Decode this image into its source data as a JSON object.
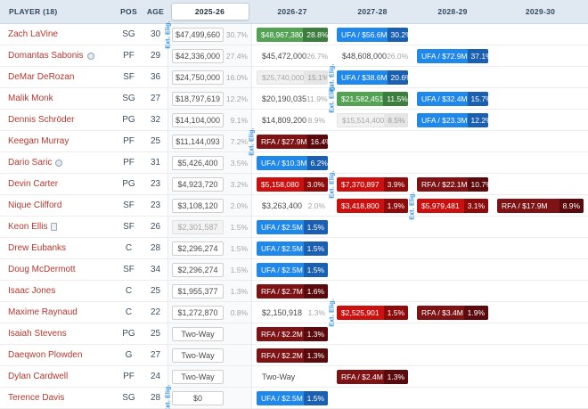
{
  "header": {
    "columns": [
      {
        "label": "PLAYER (18)",
        "active": false
      },
      {
        "label": "POS",
        "active": false
      },
      {
        "label": "AGE",
        "active": false
      },
      {
        "label": "2025-26",
        "active": true
      },
      {
        "label": "2026-27",
        "active": false
      },
      {
        "label": "2027-28",
        "active": false
      },
      {
        "label": "2028-29",
        "active": false
      },
      {
        "label": "2029-30",
        "active": false
      }
    ]
  },
  "ext_label": "Ext. Elig.",
  "colors": {
    "header_bg": "#e0e9f2",
    "player_link": "#b5372e",
    "green": "#54a254",
    "green_badge": "#3c7e3e",
    "blue": "#1f88e8",
    "blue_badge": "#1a5fb0",
    "red": "#cb1010",
    "red_badge": "#8e0b0b",
    "maroon": "#7d1315",
    "maroon_badge": "#5a0a0c",
    "ext": "#2e8fe0"
  },
  "rows": [
    {
      "player": "Zach LaVine",
      "pos": "SG",
      "age": "30",
      "icon": null,
      "seasons": [
        {
          "col": 0,
          "type": "boxed",
          "text": "$47,499,660",
          "pct": "30.7%",
          "ext": true
        },
        {
          "col": 1,
          "type": "green",
          "text": "$48,967,380",
          "pct": "28.8%"
        },
        {
          "col": 2,
          "type": "blue",
          "text": "UFA / $56.6M",
          "pct": "30.2%"
        }
      ]
    },
    {
      "player": "Domantas Sabonis",
      "pos": "PF",
      "age": "29",
      "icon": "circle",
      "seasons": [
        {
          "col": 0,
          "type": "boxed",
          "text": "$42,336,000",
          "pct": "27.4%"
        },
        {
          "col": 1,
          "type": "plain",
          "text": "$45,472,000",
          "pct": "26.7%"
        },
        {
          "col": 2,
          "type": "plain",
          "text": "$48,608,000",
          "pct": "26.0%"
        },
        {
          "col": 3,
          "type": "blue",
          "text": "UFA / $72.9M",
          "pct": "37.1%"
        }
      ]
    },
    {
      "player": "DeMar DeRozan",
      "pos": "SF",
      "age": "36",
      "icon": null,
      "seasons": [
        {
          "col": 0,
          "type": "boxed",
          "text": "$24,750,000",
          "pct": "16.0%"
        },
        {
          "col": 1,
          "type": "muted",
          "text": "$25,740,000",
          "pct": "15.1%"
        },
        {
          "col": 2,
          "type": "blue",
          "text": "UFA / $38.6M",
          "pct": "20.6%",
          "ext": true
        }
      ]
    },
    {
      "player": "Malik Monk",
      "pos": "SG",
      "age": "27",
      "icon": null,
      "seasons": [
        {
          "col": 0,
          "type": "boxed",
          "text": "$18,797,619",
          "pct": "12.2%"
        },
        {
          "col": 1,
          "type": "plain",
          "text": "$20,190,035",
          "pct": "11.9%"
        },
        {
          "col": 2,
          "type": "green",
          "text": "$21,582,451",
          "pct": "11.5%",
          "ext": true
        },
        {
          "col": 3,
          "type": "blue",
          "text": "UFA / $32.4M",
          "pct": "15.7%"
        }
      ]
    },
    {
      "player": "Dennis Schröder",
      "pos": "PG",
      "age": "32",
      "icon": null,
      "seasons": [
        {
          "col": 0,
          "type": "boxed",
          "text": "$14,104,000",
          "pct": "9.1%"
        },
        {
          "col": 1,
          "type": "plain",
          "text": "$14,809,200",
          "pct": "8.9%"
        },
        {
          "col": 2,
          "type": "muted",
          "text": "$15,514,400",
          "pct": "8.5%"
        },
        {
          "col": 3,
          "type": "blue",
          "text": "UFA / $23.3M",
          "pct": "12.2%"
        }
      ]
    },
    {
      "player": "Keegan Murray",
      "pos": "PF",
      "age": "25",
      "icon": null,
      "seasons": [
        {
          "col": 0,
          "type": "boxed",
          "text": "$11,144,093",
          "pct": "7.2%"
        },
        {
          "col": 1,
          "type": "maroon",
          "text": "RFA / $27.9M",
          "pct": "16.4%",
          "ext": true
        }
      ]
    },
    {
      "player": "Dario Saric",
      "pos": "PF",
      "age": "31",
      "icon": "circle",
      "seasons": [
        {
          "col": 0,
          "type": "boxed",
          "text": "$5,426,400",
          "pct": "3.5%"
        },
        {
          "col": 1,
          "type": "blue",
          "text": "UFA / $10.3M",
          "pct": "6.2%"
        }
      ]
    },
    {
      "player": "Devin Carter",
      "pos": "PG",
      "age": "23",
      "icon": null,
      "seasons": [
        {
          "col": 0,
          "type": "boxed",
          "text": "$4,923,720",
          "pct": "3.2%"
        },
        {
          "col": 1,
          "type": "red",
          "text": "$5,158,080",
          "pct": "3.0%"
        },
        {
          "col": 2,
          "type": "red",
          "text": "$7,370,897",
          "pct": "3.9%",
          "ext": true
        },
        {
          "col": 3,
          "type": "maroon",
          "text": "RFA / $22.1M",
          "pct": "10.7%"
        }
      ]
    },
    {
      "player": "Nique Clifford",
      "pos": "SF",
      "age": "23",
      "icon": null,
      "seasons": [
        {
          "col": 0,
          "type": "boxed",
          "text": "$3,108,120",
          "pct": "2.0%"
        },
        {
          "col": 1,
          "type": "plain",
          "text": "$3,263,400",
          "pct": "2.0%"
        },
        {
          "col": 2,
          "type": "red",
          "text": "$3,418,800",
          "pct": "1.9%"
        },
        {
          "col": 3,
          "type": "red",
          "text": "$5,979,481",
          "pct": "3.1%",
          "ext": true
        },
        {
          "col": 4,
          "type": "maroon",
          "text": "RFA / $17.9M",
          "pct": "8.9%"
        }
      ]
    },
    {
      "player": "Keon Ellis",
      "pos": "SF",
      "age": "26",
      "icon": "card",
      "seasons": [
        {
          "col": 0,
          "type": "boxed_muted",
          "text": "$2,301,587",
          "pct": "1.5%"
        },
        {
          "col": 1,
          "type": "blue",
          "text": "UFA / $2.5M",
          "pct": "1.5%"
        }
      ]
    },
    {
      "player": "Drew Eubanks",
      "pos": "C",
      "age": "28",
      "icon": null,
      "seasons": [
        {
          "col": 0,
          "type": "boxed",
          "text": "$2,296,274",
          "pct": "1.5%"
        },
        {
          "col": 1,
          "type": "blue",
          "text": "UFA / $2.5M",
          "pct": "1.5%"
        }
      ]
    },
    {
      "player": "Doug McDermott",
      "pos": "SF",
      "age": "34",
      "icon": null,
      "seasons": [
        {
          "col": 0,
          "type": "boxed",
          "text": "$2,296,274",
          "pct": "1.5%"
        },
        {
          "col": 1,
          "type": "blue",
          "text": "UFA / $2.5M",
          "pct": "1.5%"
        }
      ]
    },
    {
      "player": "Isaac Jones",
      "pos": "C",
      "age": "25",
      "icon": null,
      "seasons": [
        {
          "col": 0,
          "type": "boxed",
          "text": "$1,955,377",
          "pct": "1.3%"
        },
        {
          "col": 1,
          "type": "maroon",
          "text": "RFA / $2.7M",
          "pct": "1.6%"
        }
      ]
    },
    {
      "player": "Maxime Raynaud",
      "pos": "C",
      "age": "22",
      "icon": null,
      "seasons": [
        {
          "col": 0,
          "type": "boxed",
          "text": "$1,272,870",
          "pct": "0.8%"
        },
        {
          "col": 1,
          "type": "plain",
          "text": "$2,150,918",
          "pct": "1.3%"
        },
        {
          "col": 2,
          "type": "red",
          "text": "$2,525,901",
          "pct": "1.5%",
          "ext": true
        },
        {
          "col": 3,
          "type": "maroon",
          "text": "RFA / $3.4M",
          "pct": "1.9%"
        }
      ]
    },
    {
      "player": "Isaiah Stevens",
      "pos": "PG",
      "age": "25",
      "icon": null,
      "seasons": [
        {
          "col": 0,
          "type": "boxed",
          "text": "Two-Way"
        },
        {
          "col": 1,
          "type": "maroon",
          "text": "RFA / $2.2M",
          "pct": "1.3%"
        }
      ]
    },
    {
      "player": "Daeqwon Plowden",
      "pos": "G",
      "age": "27",
      "icon": null,
      "seasons": [
        {
          "col": 0,
          "type": "boxed",
          "text": "Two-Way"
        },
        {
          "col": 1,
          "type": "maroon",
          "text": "RFA / $2.2M",
          "pct": "1.3%"
        }
      ]
    },
    {
      "player": "Dylan Cardwell",
      "pos": "PF",
      "age": "24",
      "icon": null,
      "seasons": [
        {
          "col": 0,
          "type": "boxed",
          "text": "Two-Way"
        },
        {
          "col": 1,
          "type": "plain",
          "text": "Two-Way"
        },
        {
          "col": 2,
          "type": "maroon",
          "text": "RFA / $2.4M",
          "pct": "1.3%"
        }
      ]
    },
    {
      "player": "Terence Davis",
      "pos": "SG",
      "age": "28",
      "icon": null,
      "seasons": [
        {
          "col": 0,
          "type": "boxed",
          "text": "$0",
          "ext": true
        },
        {
          "col": 1,
          "type": "blue",
          "text": "UFA / $2.5M",
          "pct": "1.5%"
        }
      ]
    }
  ]
}
